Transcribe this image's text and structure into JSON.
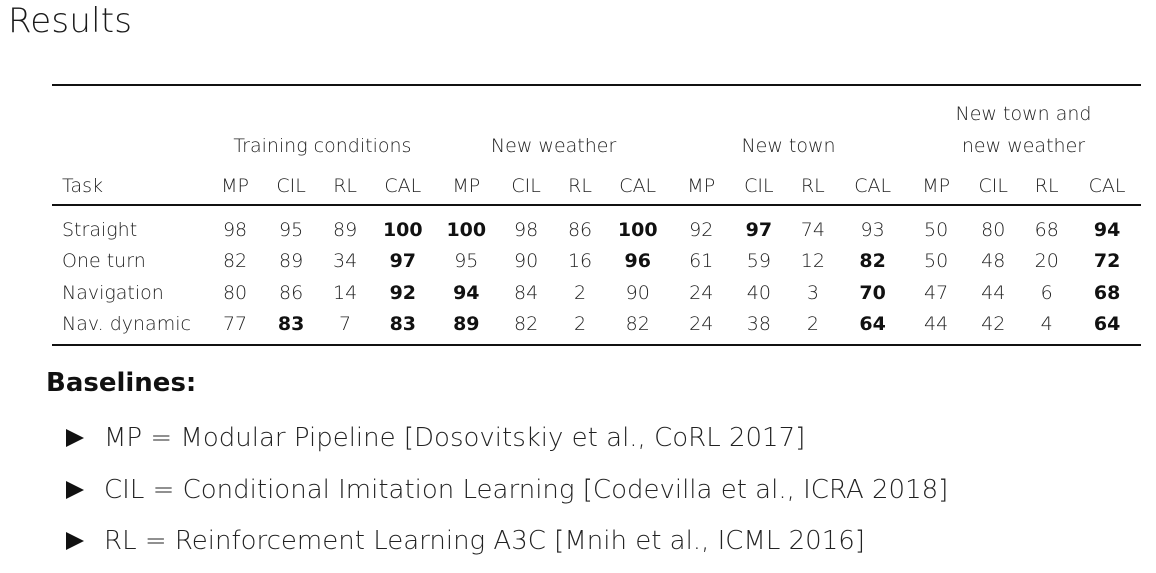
{
  "title": "Results",
  "table": {
    "groups": [
      {
        "label": "Training conditions"
      },
      {
        "label": "New weather"
      },
      {
        "label": "New town"
      },
      {
        "label": "New town and new weather"
      }
    ],
    "task_header": "Task",
    "col_labels": [
      "MP",
      "CIL",
      "RL",
      "CAL"
    ],
    "rows": [
      {
        "task": "Straight",
        "values": [
          [
            98,
            95,
            89,
            100
          ],
          [
            100,
            98,
            86,
            100
          ],
          [
            92,
            97,
            74,
            93
          ],
          [
            50,
            80,
            68,
            94
          ]
        ],
        "bold": [
          [
            false,
            false,
            false,
            true
          ],
          [
            true,
            false,
            false,
            true
          ],
          [
            false,
            true,
            false,
            false
          ],
          [
            false,
            false,
            false,
            true
          ]
        ]
      },
      {
        "task": "One turn",
        "values": [
          [
            82,
            89,
            34,
            97
          ],
          [
            95,
            90,
            16,
            96
          ],
          [
            61,
            59,
            12,
            82
          ],
          [
            50,
            48,
            20,
            72
          ]
        ],
        "bold": [
          [
            false,
            false,
            false,
            true
          ],
          [
            false,
            false,
            false,
            true
          ],
          [
            false,
            false,
            false,
            true
          ],
          [
            false,
            false,
            false,
            true
          ]
        ]
      },
      {
        "task": "Navigation",
        "values": [
          [
            80,
            86,
            14,
            92
          ],
          [
            94,
            84,
            2,
            90
          ],
          [
            24,
            40,
            3,
            70
          ],
          [
            47,
            44,
            6,
            68
          ]
        ],
        "bold": [
          [
            false,
            false,
            false,
            true
          ],
          [
            true,
            false,
            false,
            false
          ],
          [
            false,
            false,
            false,
            true
          ],
          [
            false,
            false,
            false,
            true
          ]
        ]
      },
      {
        "task": "Nav. dynamic",
        "values": [
          [
            77,
            83,
            7,
            83
          ],
          [
            89,
            82,
            2,
            82
          ],
          [
            24,
            38,
            2,
            64
          ],
          [
            44,
            42,
            4,
            64
          ]
        ],
        "bold": [
          [
            false,
            true,
            false,
            true
          ],
          [
            true,
            false,
            false,
            false
          ],
          [
            false,
            false,
            false,
            true
          ],
          [
            false,
            false,
            false,
            true
          ]
        ]
      }
    ]
  },
  "baselines": {
    "heading": "Baselines:",
    "items": [
      "MP = Modular Pipeline [Dosovitskiy et al., CoRL 2017]",
      "CIL = Conditional Imitation Learning [Codevilla et al., ICRA 2018]",
      "RL = Reinforcement Learning A3C [Mnih et al., ICML 2016]"
    ],
    "bullet_icon": "triangle-right-icon"
  }
}
